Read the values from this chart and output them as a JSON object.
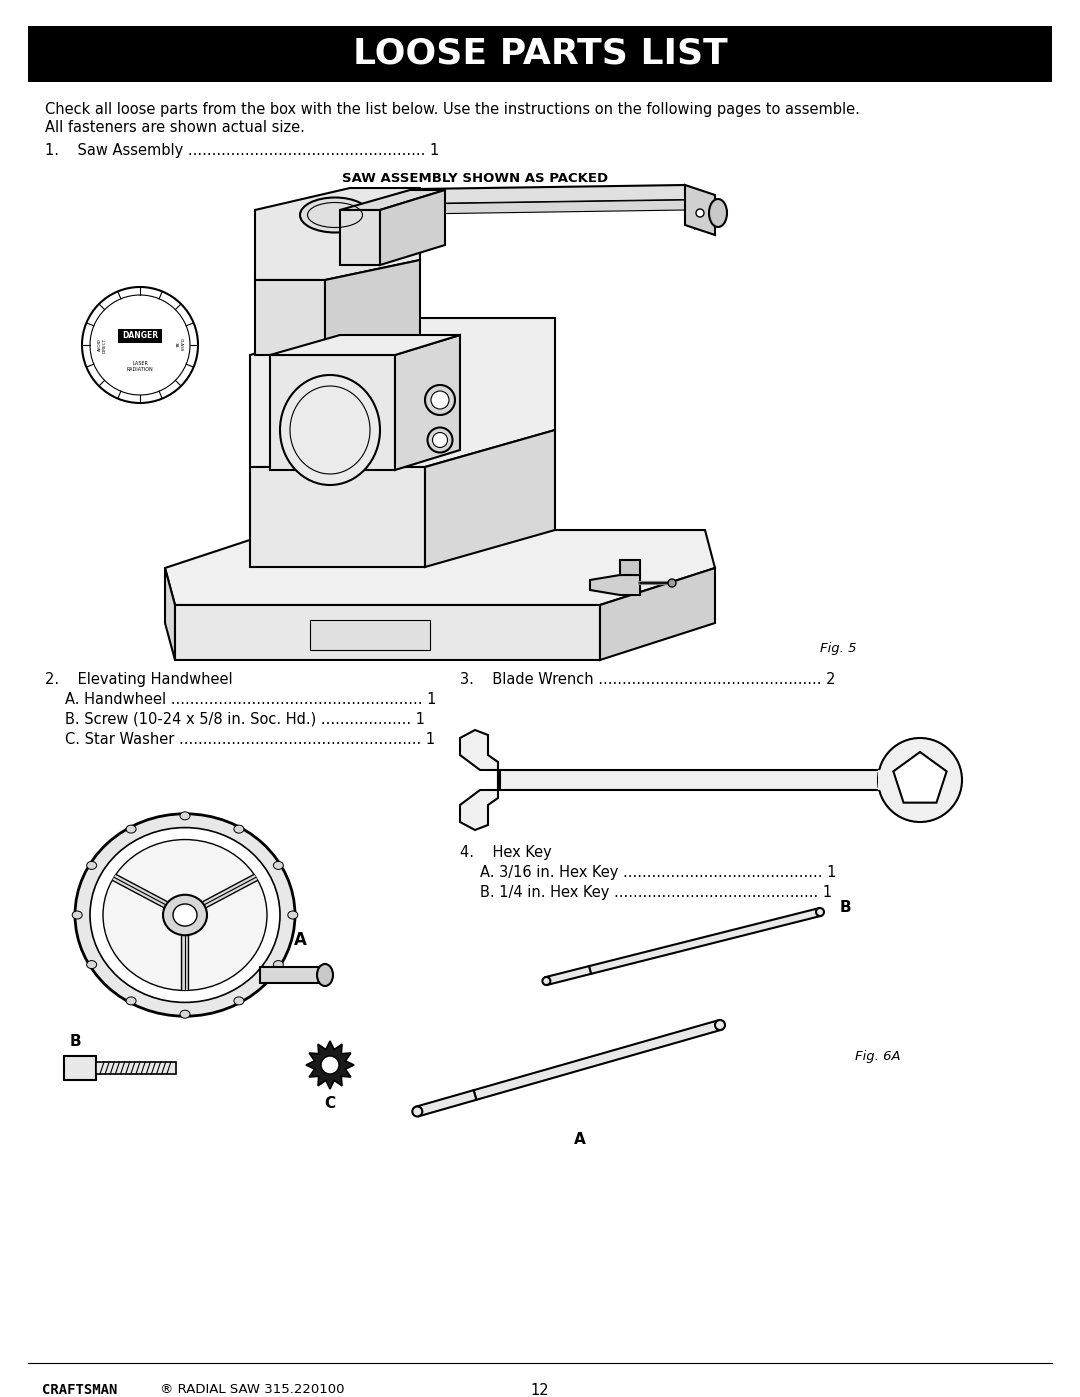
{
  "title": "LOOSE PARTS LIST",
  "title_bg": "#000000",
  "title_color": "#ffffff",
  "page_bg": "#ffffff",
  "intro_line1": "Check all loose parts from the box with the list below. Use the instructions on the following pages to assemble.",
  "intro_line2": "All fasteners are shown actual size.",
  "item1_text": "1.    Saw Assembly .................................................. 1",
  "saw_subtitle": "SAW ASSEMBLY SHOWN AS PACKED",
  "fig5_label": "Fig. 5",
  "item2_header": "2.    Elevating Handwheel",
  "item2a": "     A. Handwheel .................................................. 1",
  "item2b": "     B. Screw (10-24 x 5/8 in. Soc. Hd.) ................... 1",
  "item2c": "     C. Star Washer ................................................ 1",
  "label_A": "A",
  "label_B": "B",
  "label_C": "C",
  "item3_label": "3.    Blade Wrench .................................................. 2",
  "item4_header": "4.    Hex Key",
  "item4a": "     A. 3/16 in. Hex Key ......................................... 1",
  "item4b": "     B. 1/4 in. Hex Key .......................................... 1",
  "label_A_hex": "A",
  "label_B_hex": "B",
  "fig6a_label": "Fig. 6A",
  "footer_brand": "CRAFTSMAN",
  "footer_super": "®",
  "footer_model": " RADIAL SAW 315.220100",
  "footer_page": "12",
  "font_size_title": 26,
  "font_size_body": 11,
  "font_size_small": 9,
  "lw_drawing": 1.5
}
